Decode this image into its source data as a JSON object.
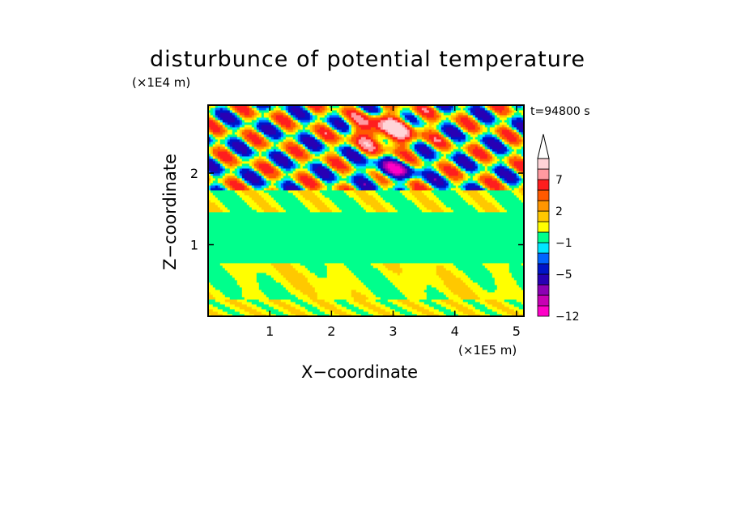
{
  "chart_data": {
    "type": "heatmap",
    "title": "disturbunce of potential temperature",
    "xlabel": "X−coordinate",
    "ylabel": "Z−coordinate",
    "x_unit": "(×1E5 m)",
    "y_unit": "(×1E4 m)",
    "time_label": "t=94800 s",
    "xlim": [
      0,
      5.12
    ],
    "ylim": [
      0,
      2.95
    ],
    "xticks": [
      1,
      2,
      3,
      4,
      5
    ],
    "xtick_labels": [
      "1",
      "2",
      "3",
      "4",
      "5"
    ],
    "yticks": [
      1,
      2
    ],
    "ytick_labels": [
      "1",
      "2"
    ],
    "colorbar": {
      "levels": [
        -12,
        -11,
        -9,
        -7,
        -5,
        -3,
        -2,
        -1,
        0,
        1,
        2,
        3,
        5,
        7,
        9,
        11
      ],
      "tick_labels": [
        "-12",
        "-5",
        "-1",
        "2",
        "7"
      ],
      "tick_values": [
        -12,
        -5,
        -1,
        2,
        7
      ],
      "colors": [
        "#ff00c8",
        "#c800b4",
        "#8c00b4",
        "#2800b4",
        "#0014c8",
        "#0064ff",
        "#00e6ff",
        "#00ff8c",
        "#ffff00",
        "#ffc800",
        "#ff9600",
        "#ff5a00",
        "#ff1e1e",
        "#ff9aa0",
        "#ffd4d8"
      ]
    },
    "grid": false
  },
  "colors": {
    "cyan": "#00e6ff",
    "yellow": "#ffff00",
    "orange": "#ff9600",
    "red": "#ff1e1e",
    "blue": "#0014c8",
    "green": "#00ff8c"
  }
}
